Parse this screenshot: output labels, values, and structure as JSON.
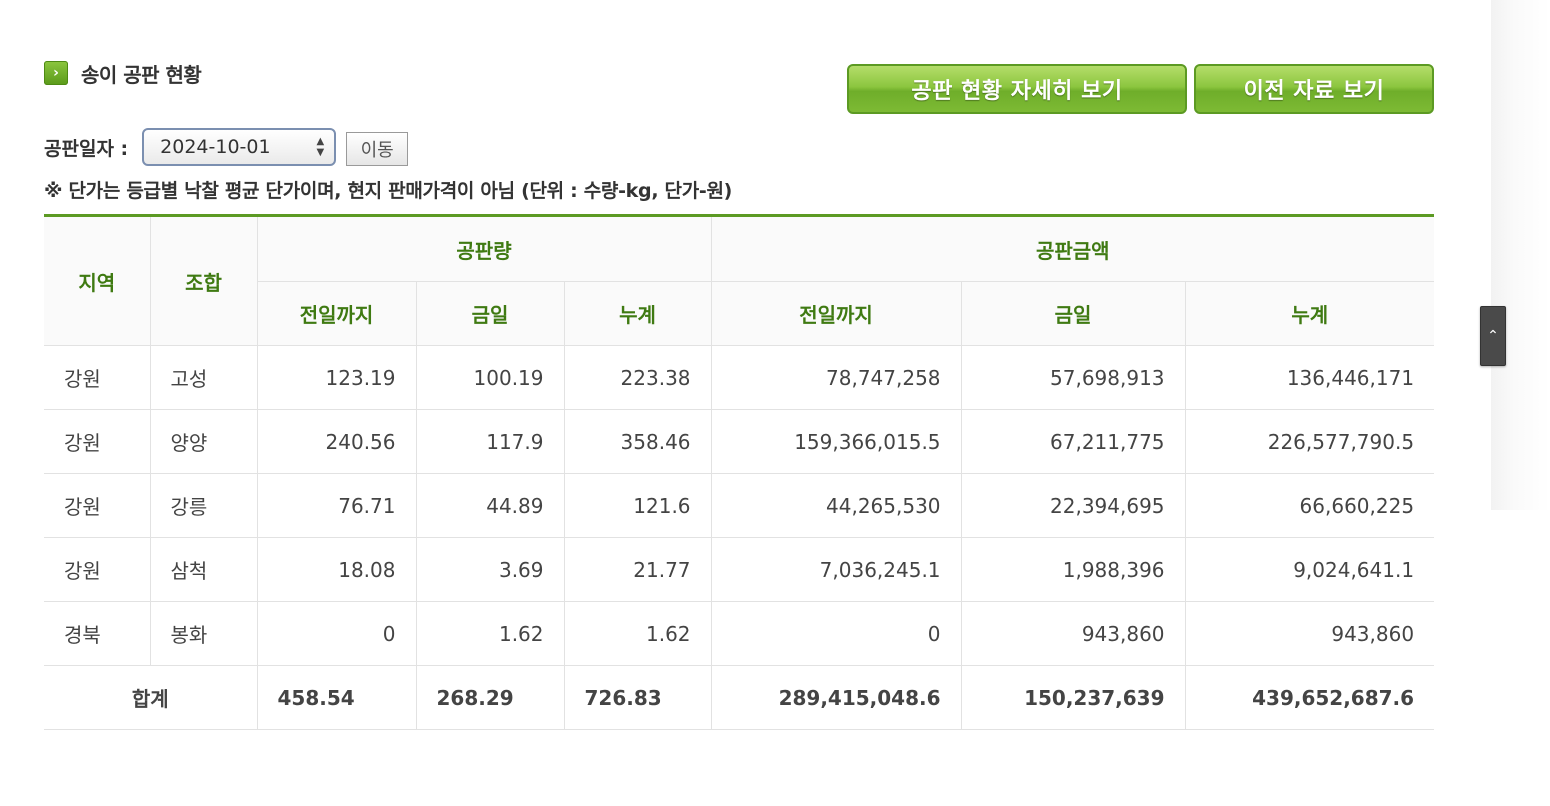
{
  "header": {
    "title": "송이 공판 현황",
    "title_icon": "chevron-right-icon",
    "detail_button": "공판 현황 자세히 보기",
    "prev_button": "이전 자료 보기"
  },
  "date_filter": {
    "label": "공판일자 :",
    "selected": "2024-10-01",
    "go_button": "이동"
  },
  "note": "※ 단가는 등급별 낙찰 평균 단가이며, 현지 판매가격이 아님 (단위 : 수량-kg, 단가-원)",
  "table": {
    "headers": {
      "region": "지역",
      "union": "조합",
      "quantity": "공판량",
      "amount": "공판금액",
      "until_yesterday": "전일까지",
      "today": "금일",
      "cumulative": "누계"
    },
    "rows": [
      {
        "region": "강원",
        "union": "고성",
        "q_prev": "123.19",
        "q_today": "100.19",
        "q_total": "223.38",
        "a_prev": "78,747,258",
        "a_today": "57,698,913",
        "a_total": "136,446,171"
      },
      {
        "region": "강원",
        "union": "양양",
        "q_prev": "240.56",
        "q_today": "117.9",
        "q_total": "358.46",
        "a_prev": "159,366,015.5",
        "a_today": "67,211,775",
        "a_total": "226,577,790.5"
      },
      {
        "region": "강원",
        "union": "강릉",
        "q_prev": "76.71",
        "q_today": "44.89",
        "q_total": "121.6",
        "a_prev": "44,265,530",
        "a_today": "22,394,695",
        "a_total": "66,660,225"
      },
      {
        "region": "강원",
        "union": "삼척",
        "q_prev": "18.08",
        "q_today": "3.69",
        "q_total": "21.77",
        "a_prev": "7,036,245.1",
        "a_today": "1,988,396",
        "a_total": "9,024,641.1"
      },
      {
        "region": "경북",
        "union": "봉화",
        "q_prev": "0",
        "q_today": "1.62",
        "q_total": "1.62",
        "a_prev": "0",
        "a_today": "943,860",
        "a_total": "943,860"
      }
    ],
    "total": {
      "label": "합계",
      "q_prev": "458.54",
      "q_today": "268.29",
      "q_total": "726.83",
      "a_prev": "289,415,048.6",
      "a_today": "150,237,639",
      "a_total": "439,652,687.6"
    }
  },
  "scroll_top_icon": "chevron-up-icon",
  "colors": {
    "accent_green": "#5c9a23",
    "header_text_green": "#3f7a12",
    "button_green": "#8cc63f"
  }
}
